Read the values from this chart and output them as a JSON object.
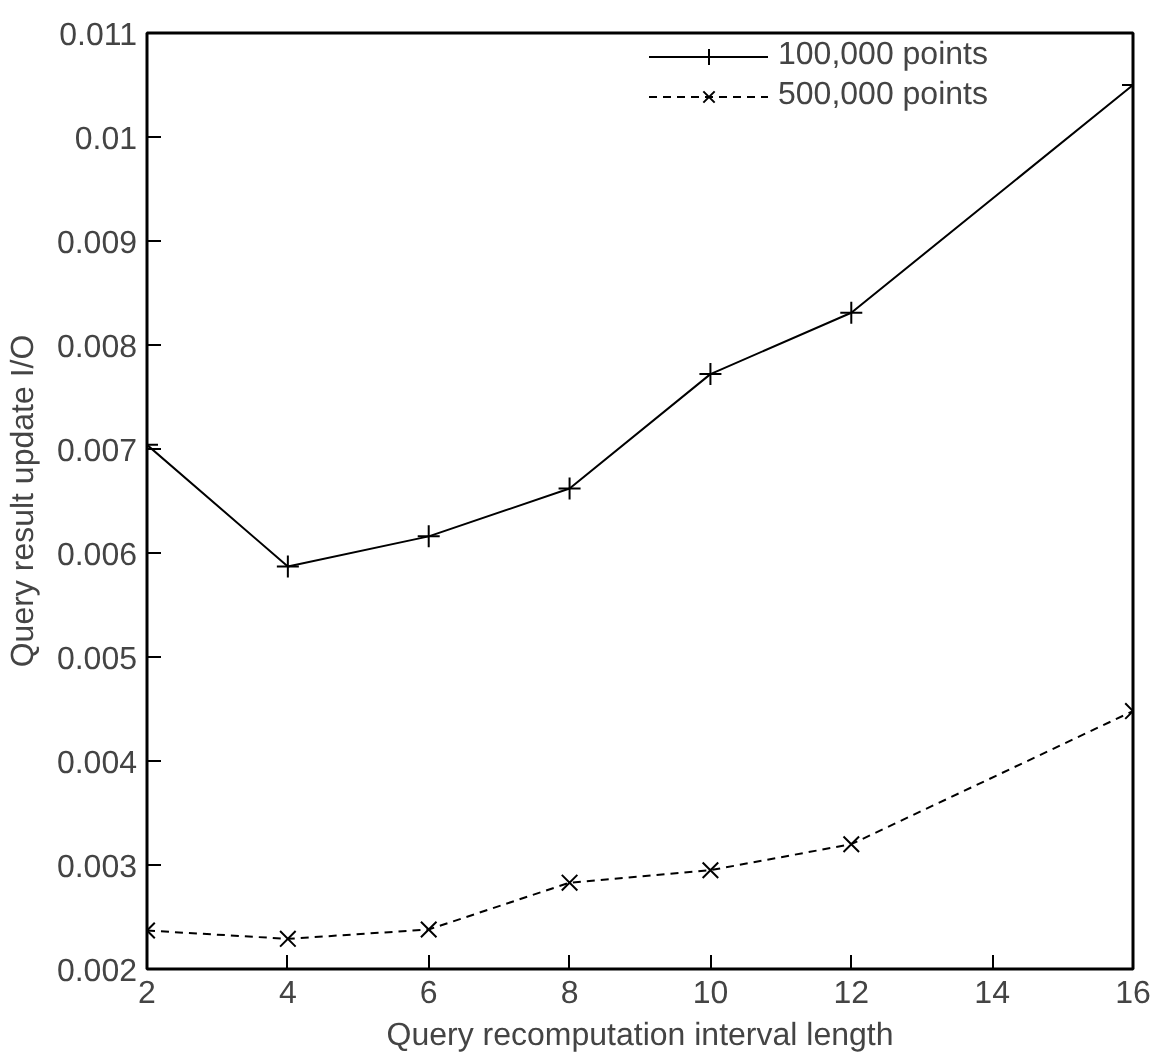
{
  "chart_data": {
    "type": "line",
    "xlabel": "Query recomputation interval length",
    "ylabel": "Query result update I/O",
    "x": [
      2,
      4,
      6,
      8,
      10,
      12,
      16
    ],
    "series": [
      {
        "name": "100,000 points",
        "color": "#000000",
        "marker": "cross",
        "line_style": "solid",
        "values": [
          0.00704,
          0.00587,
          0.00616,
          0.00662,
          0.00772,
          0.00831,
          0.0105
        ]
      },
      {
        "name": "500,000 points",
        "color": "#000000",
        "marker": "x",
        "line_style": "dashed",
        "values": [
          0.00237,
          0.00229,
          0.00238,
          0.00283,
          0.00295,
          0.0032,
          0.00448
        ]
      }
    ],
    "xlim": [
      2,
      16
    ],
    "xticks": [
      2,
      4,
      6,
      8,
      10,
      12,
      14,
      16
    ],
    "ylim": [
      0.002,
      0.011
    ],
    "yticks": [
      {
        "value": 0.002,
        "label": "0.002"
      },
      {
        "value": 0.003,
        "label": "0.003"
      },
      {
        "value": 0.004,
        "label": "0.004"
      },
      {
        "value": 0.005,
        "label": "0.005"
      },
      {
        "value": 0.006,
        "label": "0.006"
      },
      {
        "value": 0.007,
        "label": "0.007"
      },
      {
        "value": 0.008,
        "label": "0.008"
      },
      {
        "value": 0.009,
        "label": "0.009"
      },
      {
        "value": 0.01,
        "label": "0.01"
      },
      {
        "value": 0.011,
        "label": "0.011"
      }
    ],
    "grid": false,
    "legend": "top right"
  }
}
